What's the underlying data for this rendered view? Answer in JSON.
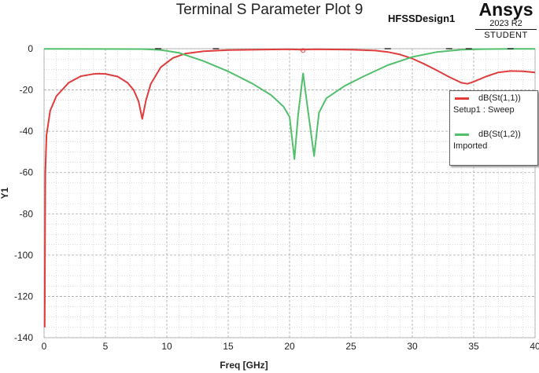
{
  "header": {
    "title": "Terminal S Parameter Plot 9",
    "design": "HFSSDesign1",
    "brand": "Ansys",
    "version": "2023 R2",
    "edition": "STUDENT"
  },
  "chart_data": {
    "type": "line",
    "title": "Terminal S Parameter Plot 9",
    "xlabel": "Freq [GHz]",
    "ylabel": "Y1",
    "xlim": [
      0,
      40
    ],
    "ylim": [
      -140,
      0
    ],
    "xticks": [
      0,
      5,
      10,
      15,
      20,
      25,
      30,
      35,
      40
    ],
    "yticks": [
      0,
      -20,
      -40,
      -60,
      -80,
      -100,
      -120,
      -140
    ],
    "grid": true,
    "legend_position": "right",
    "series": [
      {
        "name": "dB(St(1,1))",
        "setup": "Setup1 : Sweep",
        "color": "#e03c3c",
        "points": [
          [
            0.05,
            -135
          ],
          [
            0.1,
            -60
          ],
          [
            0.2,
            -42
          ],
          [
            0.5,
            -30
          ],
          [
            1,
            -23
          ],
          [
            2,
            -16.5
          ],
          [
            3,
            -13.3
          ],
          [
            4,
            -12.3
          ],
          [
            4.5,
            -12.1
          ],
          [
            5,
            -12.2
          ],
          [
            6,
            -13.5
          ],
          [
            6.8,
            -16.5
          ],
          [
            7.3,
            -20
          ],
          [
            7.7,
            -25.5
          ],
          [
            8,
            -34
          ],
          [
            8.3,
            -25
          ],
          [
            8.7,
            -17
          ],
          [
            9.5,
            -9
          ],
          [
            10.5,
            -4.5
          ],
          [
            11.5,
            -2.4
          ],
          [
            13,
            -1.2
          ],
          [
            15,
            -0.7
          ],
          [
            18,
            -0.4
          ],
          [
            20,
            -0.3
          ],
          [
            21,
            -0.5
          ],
          [
            22,
            -0.3
          ],
          [
            25,
            -0.5
          ],
          [
            27,
            -0.9
          ],
          [
            28,
            -1.6
          ],
          [
            29,
            -2.8
          ],
          [
            30,
            -4.8
          ],
          [
            31,
            -7.5
          ],
          [
            32,
            -10.5
          ],
          [
            33,
            -13.7
          ],
          [
            34,
            -16.5
          ],
          [
            34.5,
            -17
          ],
          [
            35,
            -16
          ],
          [
            36,
            -13.5
          ],
          [
            37,
            -11.5
          ],
          [
            38,
            -10.8
          ],
          [
            39,
            -10.9
          ],
          [
            40,
            -11.5
          ]
        ]
      },
      {
        "name": "dB(St(1,2))",
        "setup": "Imported",
        "color": "#52bf6c",
        "points": [
          [
            0,
            -0.1
          ],
          [
            8,
            -0.2
          ],
          [
            9.5,
            -0.6
          ],
          [
            11,
            -2
          ],
          [
            13,
            -6
          ],
          [
            15,
            -11
          ],
          [
            17,
            -17
          ],
          [
            18.5,
            -22.5
          ],
          [
            19.5,
            -28
          ],
          [
            20,
            -33
          ],
          [
            20.4,
            -53.5
          ],
          [
            20.7,
            -32
          ],
          [
            21.1,
            -12
          ],
          [
            21.5,
            -30
          ],
          [
            22,
            -52
          ],
          [
            22.4,
            -31
          ],
          [
            23,
            -24
          ],
          [
            24.5,
            -18
          ],
          [
            26,
            -13.5
          ],
          [
            28,
            -8
          ],
          [
            30,
            -4
          ],
          [
            32,
            -1.6
          ],
          [
            34,
            -0.5
          ],
          [
            36,
            -0.2
          ],
          [
            38,
            -0.1
          ],
          [
            40,
            -0.1
          ]
        ]
      }
    ]
  }
}
